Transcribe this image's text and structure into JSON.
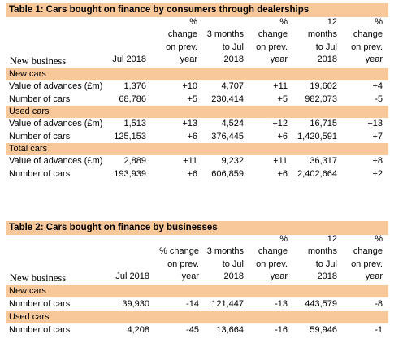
{
  "table1": {
    "title": "Table 1: Cars bought on finance by consumers through dealerships",
    "row_header": "New business",
    "columns": [
      [
        "Jul 2018"
      ],
      [
        "%",
        "change",
        "on prev.",
        "year"
      ],
      [
        "3 months",
        "to Jul",
        "2018"
      ],
      [
        "%",
        "change",
        "on prev.",
        "year"
      ],
      [
        "12",
        "months",
        "to Jul",
        "2018"
      ],
      [
        "%",
        "change",
        "on prev.",
        "year"
      ]
    ],
    "sections": [
      {
        "name": "New cars",
        "rows": [
          {
            "label": "Value of advances (£m)",
            "cells": [
              "1,376",
              "+10",
              "4,707",
              "+11",
              "19,602",
              "+4"
            ]
          },
          {
            "label": "Number of cars",
            "cells": [
              "68,786",
              "+5",
              "230,414",
              "+5",
              "982,073",
              "-5"
            ]
          }
        ]
      },
      {
        "name": "Used cars",
        "rows": [
          {
            "label": "Value of advances (£m)",
            "cells": [
              "1,513",
              "+13",
              "4,524",
              "+12",
              "16,715",
              "+13"
            ]
          },
          {
            "label": "Number of cars",
            "cells": [
              "125,153",
              "+6",
              "376,445",
              "+6",
              "1,420,591",
              "+7"
            ]
          }
        ]
      },
      {
        "name": "Total cars",
        "rows": [
          {
            "label": "Value of advances (£m)",
            "cells": [
              "2,889",
              "+11",
              "9,232",
              "+11",
              "36,317",
              "+8"
            ]
          },
          {
            "label": "Number of cars",
            "cells": [
              "193,939",
              "+6",
              "606,859",
              "+6",
              "2,402,664",
              "+2"
            ]
          }
        ]
      }
    ]
  },
  "table2": {
    "title": "Table 2: Cars bought on finance by businesses",
    "row_header": "New business",
    "columns": [
      [
        "Jul 2018"
      ],
      [
        "% change",
        "on prev.",
        "year"
      ],
      [
        "3 months",
        "to Jul",
        "2018"
      ],
      [
        "%",
        "change",
        "on prev.",
        "year"
      ],
      [
        "12",
        "months",
        "to Jul",
        "2018"
      ],
      [
        "%",
        "change",
        "on prev.",
        "year"
      ]
    ],
    "sections": [
      {
        "name": "New cars",
        "rows": [
          {
            "label": "Number of cars",
            "cells": [
              "39,930",
              "-14",
              "121,447",
              "-13",
              "443,579",
              "-8"
            ]
          }
        ]
      },
      {
        "name": "Used cars",
        "rows": [
          {
            "label": "Number of cars",
            "cells": [
              "4,208",
              "-45",
              "13,664",
              "-16",
              "59,946",
              "-1"
            ]
          }
        ]
      }
    ]
  },
  "colors": {
    "header_fill": "#f8c79a",
    "text": "#000000",
    "background": "#ffffff"
  }
}
